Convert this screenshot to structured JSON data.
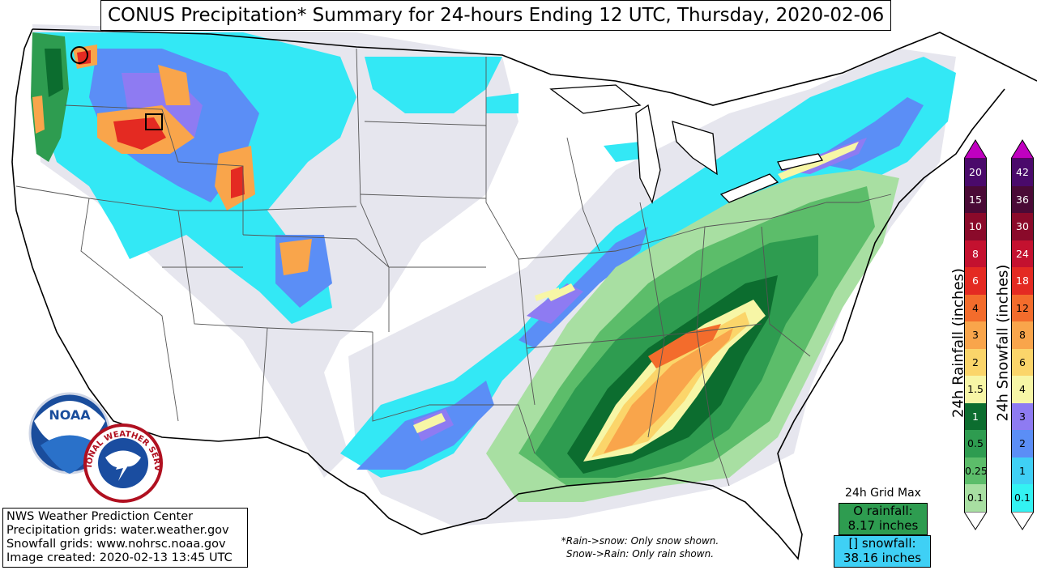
{
  "header": {
    "title": "CONUS Precipitation* Summary for 24-hours Ending 12 UTC, Thursday, 2020-02-06"
  },
  "credits": {
    "line1": "NWS Weather Prediction Center",
    "line2": "Precipitation grids: water.weather.gov",
    "line3": "Snowfall grids: www.nohrsc.noaa.gov",
    "line4": "Image created: 2020-02-13 13:45 UTC"
  },
  "note": {
    "line1": "*Rain->snow: Only snow shown.",
    "line2": "Snow->Rain: Only rain shown."
  },
  "grid_max": {
    "heading": "24h Grid Max",
    "rain_label": "O rainfall:",
    "rain_value": "8.17 inches",
    "snow_label": "[] snowfall:",
    "snow_value": "38.16 inches"
  },
  "logos": {
    "noaa": "NOAA",
    "nws": "NATIONAL WEATHER SERVICE"
  },
  "legend": {
    "rain_title": "24h Rainfall (inches)",
    "snow_title": "24h Snowfall (inches)",
    "rain_levels": [
      "20",
      "15",
      "10",
      "8",
      "6",
      "4",
      "3",
      "2",
      "1.5",
      "1",
      "0.5",
      "0.25",
      "0.1"
    ],
    "rain_colors": [
      "#4a0a6b",
      "#4a0a36",
      "#8a0a2a",
      "#c4112f",
      "#e42a22",
      "#f36c2c",
      "#f9a54b",
      "#fbd56a",
      "#f7f6a6",
      "#0c6d2f",
      "#2e9c50",
      "#5cbd6a",
      "#a8dfa2"
    ],
    "snow_levels": [
      "42",
      "36",
      "30",
      "24",
      "18",
      "12",
      "8",
      "6",
      "4",
      "3",
      "2",
      "1",
      "0.1"
    ],
    "snow_colors": [
      "#4a0a6b",
      "#4a0a36",
      "#8a0a2a",
      "#c4112f",
      "#e42a22",
      "#f36c2c",
      "#f9a54b",
      "#fbd56a",
      "#f7f6a6",
      "#8e7bf2",
      "#5b8ef6",
      "#3fd0f5",
      "#33f2f2"
    ],
    "cap_color": "#c000c0",
    "bottom_color": "#ffffff"
  },
  "map_colors": {
    "trace": "#e6e6ee",
    "snow_light": "#33e8f5",
    "snow_blue": "#5b8ef6",
    "snow_purple": "#8e7bf2",
    "snow_yellow": "#f7f6a6",
    "snow_orange": "#f9a54b",
    "snow_red": "#e42a22",
    "rain_light": "#a8dfa2",
    "rain_mid": "#5cbd6a",
    "rain_green": "#2e9c50",
    "rain_dark": "#0c6d2f",
    "rain_yellow": "#f7f6a6",
    "rain_gold": "#fbd56a",
    "rain_orange": "#f9a54b",
    "rain_deep_orange": "#f36c2c"
  }
}
